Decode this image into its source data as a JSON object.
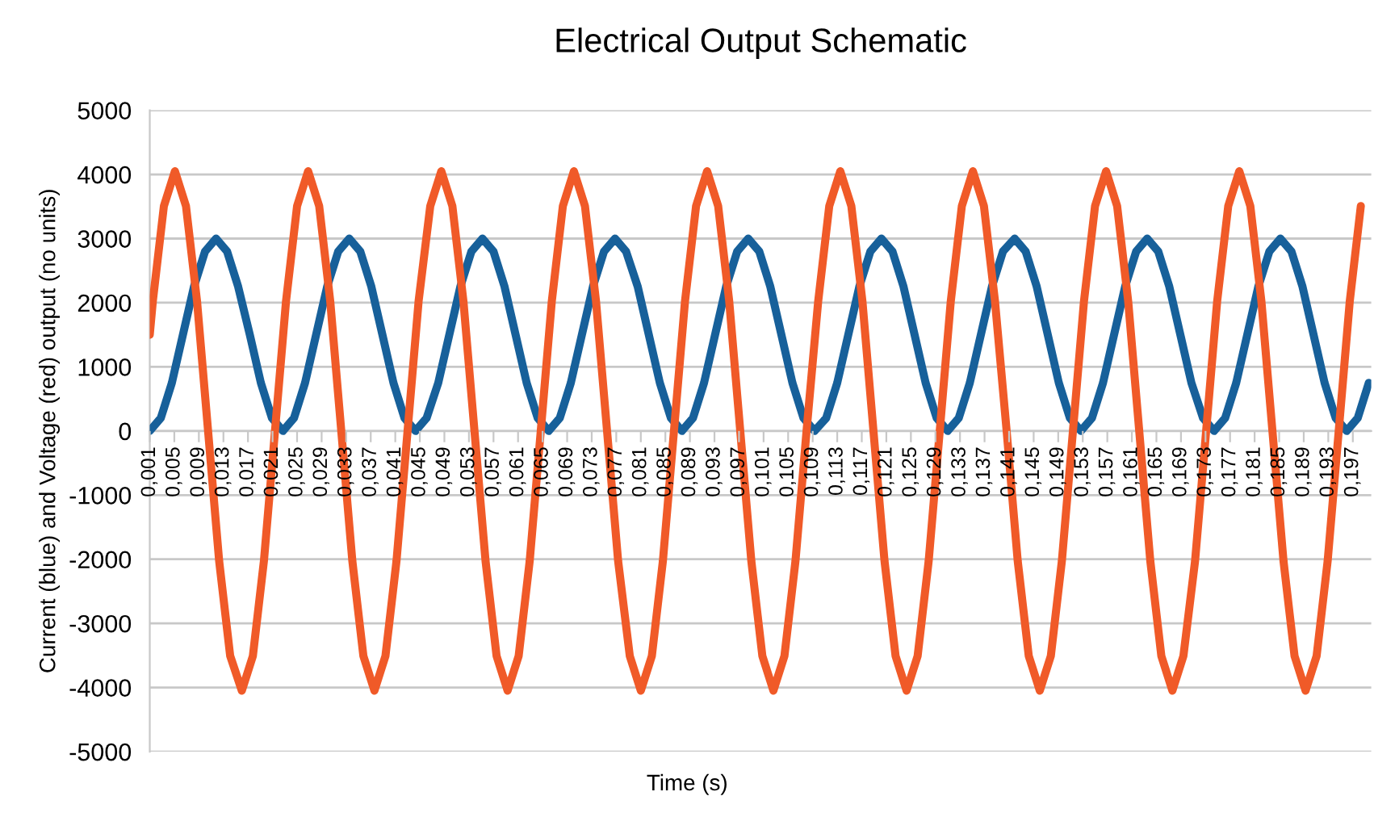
{
  "chart_data": {
    "type": "line",
    "title": "Electrical Output Schematic",
    "xlabel": "Time (s)",
    "ylabel": "Current (blue) and Voltage (red) output (no units)",
    "xlim": [
      0.001,
      0.2
    ],
    "ylim": [
      -5000,
      5000
    ],
    "yticks": [
      -5000,
      -4000,
      -3000,
      -2000,
      -1000,
      0,
      1000,
      2000,
      3000,
      4000,
      5000
    ],
    "xticks": [
      {
        "value": 0.001,
        "label": "0,001"
      },
      {
        "value": 0.005,
        "label": "0,005"
      },
      {
        "value": 0.009,
        "label": "0,009"
      },
      {
        "value": 0.013,
        "label": "0,013"
      },
      {
        "value": 0.017,
        "label": "0,017"
      },
      {
        "value": 0.021,
        "label": "0,021"
      },
      {
        "value": 0.025,
        "label": "0,025"
      },
      {
        "value": 0.029,
        "label": "0,029"
      },
      {
        "value": 0.033,
        "label": "0,033"
      },
      {
        "value": 0.037,
        "label": "0,037"
      },
      {
        "value": 0.041,
        "label": "0,041"
      },
      {
        "value": 0.045,
        "label": "0,045"
      },
      {
        "value": 0.049,
        "label": "0,049"
      },
      {
        "value": 0.053,
        "label": "0,053"
      },
      {
        "value": 0.057,
        "label": "0,057"
      },
      {
        "value": 0.061,
        "label": "0,061"
      },
      {
        "value": 0.065,
        "label": "0,065"
      },
      {
        "value": 0.069,
        "label": "0,069"
      },
      {
        "value": 0.073,
        "label": "0,073"
      },
      {
        "value": 0.077,
        "label": "0,077"
      },
      {
        "value": 0.081,
        "label": "0,081"
      },
      {
        "value": 0.085,
        "label": "0,085"
      },
      {
        "value": 0.089,
        "label": "0,089"
      },
      {
        "value": 0.093,
        "label": "0,093"
      },
      {
        "value": 0.097,
        "label": "0,097"
      },
      {
        "value": 0.101,
        "label": "0,101"
      },
      {
        "value": 0.105,
        "label": "0,105"
      },
      {
        "value": 0.109,
        "label": "0,109"
      },
      {
        "value": 0.113,
        "label": "0,113"
      },
      {
        "value": 0.117,
        "label": "0,117"
      },
      {
        "value": 0.121,
        "label": "0,121"
      },
      {
        "value": 0.125,
        "label": "0,125"
      },
      {
        "value": 0.129,
        "label": "0,129"
      },
      {
        "value": 0.133,
        "label": "0,133"
      },
      {
        "value": 0.137,
        "label": "0,137"
      },
      {
        "value": 0.141,
        "label": "0,141"
      },
      {
        "value": 0.145,
        "label": "0,145"
      },
      {
        "value": 0.149,
        "label": "0,149"
      },
      {
        "value": 0.153,
        "label": "0,153"
      },
      {
        "value": 0.157,
        "label": "0,157"
      },
      {
        "value": 0.161,
        "label": "0,161"
      },
      {
        "value": 0.165,
        "label": "0,165"
      },
      {
        "value": 0.169,
        "label": "0,169"
      },
      {
        "value": 0.173,
        "label": "0,173"
      },
      {
        "value": 0.177,
        "label": "0,177"
      },
      {
        "value": 0.181,
        "label": "0,181"
      },
      {
        "value": 0.185,
        "label": "0,185"
      },
      {
        "value": 0.189,
        "label": "0,189"
      },
      {
        "value": 0.193,
        "label": "0,193"
      },
      {
        "value": 0.197,
        "label": "0,197"
      }
    ],
    "grid": "y",
    "marker": "none",
    "line_style": "solid",
    "series": [
      {
        "color": "#17609a",
        "x": [
          0.001,
          0.0028,
          0.0046,
          0.0064,
          0.0082,
          0.01,
          0.0118,
          0.0136,
          0.0154,
          0.0173,
          0.0191,
          0.0209,
          0.0227,
          0.0245,
          0.0263,
          0.0281,
          0.0299,
          0.0317,
          0.0335,
          0.0353,
          0.0371,
          0.0389,
          0.0407,
          0.0425,
          0.0443,
          0.0461,
          0.048,
          0.0498,
          0.0516,
          0.0534,
          0.0552,
          0.057,
          0.0588,
          0.0606,
          0.0624,
          0.0642,
          0.066,
          0.0678,
          0.0696,
          0.0714,
          0.0732,
          0.075,
          0.0768,
          0.0786,
          0.0805,
          0.0823,
          0.0841,
          0.0859,
          0.0877,
          0.0895,
          0.0913,
          0.0931,
          0.0949,
          0.0967,
          0.0985,
          0.1003,
          0.1021,
          0.1039,
          0.1057,
          0.1075,
          0.1093,
          0.1112,
          0.113,
          0.1148,
          0.1166,
          0.1184,
          0.1202,
          0.122,
          0.1238,
          0.1256,
          0.1274,
          0.1292,
          0.131,
          0.1328,
          0.1346,
          0.1364,
          0.1382,
          0.14,
          0.1419,
          0.1437,
          0.1455,
          0.1473,
          0.1491,
          0.1509,
          0.1527,
          0.1545,
          0.1563,
          0.1581,
          0.1599,
          0.1617,
          0.1635,
          0.1653,
          0.1671,
          0.1689,
          0.1707,
          0.1726,
          0.1744,
          0.1762,
          0.178,
          0.1798,
          0.1816,
          0.1834,
          0.1852,
          0.187,
          0.1888,
          0.1906,
          0.1924,
          0.1942,
          0.196,
          0.1978,
          0.1996
        ],
        "values": [
          0,
          201,
          750,
          1500,
          2250,
          2799,
          3000,
          2799,
          2250,
          1500,
          750,
          201,
          0,
          201,
          750,
          1500,
          2250,
          2799,
          3000,
          2799,
          2250,
          1500,
          750,
          201,
          0,
          201,
          750,
          1500,
          2250,
          2799,
          3000,
          2799,
          2250,
          1500,
          750,
          201,
          0,
          201,
          750,
          1500,
          2250,
          2799,
          3000,
          2799,
          2250,
          1500,
          750,
          201,
          0,
          201,
          750,
          1500,
          2250,
          2799,
          3000,
          2799,
          2250,
          1500,
          750,
          201,
          0,
          201,
          750,
          1500,
          2250,
          2799,
          3000,
          2799,
          2250,
          1500,
          750,
          201,
          0,
          201,
          750,
          1500,
          2250,
          2799,
          3000,
          2799,
          2250,
          1500,
          750,
          201,
          0,
          201,
          750,
          1500,
          2250,
          2799,
          3000,
          2799,
          2250,
          1500,
          750,
          201,
          0,
          201,
          750,
          1500,
          2250,
          2799,
          3000,
          2799,
          2250,
          1500,
          750,
          201,
          0,
          201,
          750
        ]
      },
      {
        "color": "#f05a28",
        "x": [
          0.001,
          0.0015,
          0.0033,
          0.0051,
          0.0069,
          0.0087,
          0.0105,
          0.0123,
          0.0141,
          0.016,
          0.0178,
          0.0196,
          0.0214,
          0.0232,
          0.025,
          0.0268,
          0.0286,
          0.0304,
          0.0322,
          0.034,
          0.0358,
          0.0376,
          0.0394,
          0.0412,
          0.043,
          0.0448,
          0.0467,
          0.0485,
          0.0503,
          0.0521,
          0.0539,
          0.0557,
          0.0575,
          0.0593,
          0.0611,
          0.0629,
          0.0647,
          0.0665,
          0.0683,
          0.0701,
          0.0719,
          0.0737,
          0.0755,
          0.0773,
          0.0792,
          0.081,
          0.0828,
          0.0846,
          0.0864,
          0.0882,
          0.09,
          0.0918,
          0.0936,
          0.0954,
          0.0972,
          0.099,
          0.1008,
          0.1026,
          0.1044,
          0.1062,
          0.108,
          0.1099,
          0.1117,
          0.1135,
          0.1153,
          0.1171,
          0.1189,
          0.1207,
          0.1225,
          0.1243,
          0.1261,
          0.1279,
          0.1297,
          0.1315,
          0.1333,
          0.1351,
          0.1369,
          0.1387,
          0.1406,
          0.1424,
          0.1442,
          0.146,
          0.1478,
          0.1496,
          0.1514,
          0.1532,
          0.155,
          0.1568,
          0.1586,
          0.1604,
          0.1622,
          0.164,
          0.1658,
          0.1676,
          0.1694,
          0.1713,
          0.1731,
          0.1749,
          0.1767,
          0.1785,
          0.1803,
          0.1821,
          0.1839,
          0.1857,
          0.1875,
          0.1893,
          0.1911,
          0.1929,
          0.1947,
          0.1965,
          0.1983
        ],
        "values": [
          1500,
          2025,
          3507,
          4050,
          3507,
          2025,
          0,
          -2025,
          -3507,
          -4050,
          -3507,
          -2025,
          0,
          2025,
          3507,
          4050,
          3507,
          2025,
          0,
          -2025,
          -3507,
          -4050,
          -3507,
          -2025,
          0,
          2025,
          3507,
          4050,
          3507,
          2025,
          0,
          -2025,
          -3507,
          -4050,
          -3507,
          -2025,
          0,
          2025,
          3507,
          4050,
          3507,
          2025,
          0,
          -2025,
          -3507,
          -4050,
          -3507,
          -2025,
          0,
          2025,
          3507,
          4050,
          3507,
          2025,
          0,
          -2025,
          -3507,
          -4050,
          -3507,
          -2025,
          0,
          2025,
          3507,
          4050,
          3507,
          2025,
          0,
          -2025,
          -3507,
          -4050,
          -3507,
          -2025,
          0,
          2025,
          3507,
          4050,
          3507,
          2025,
          0,
          -2025,
          -3507,
          -4050,
          -3507,
          -2025,
          0,
          2025,
          3507,
          4050,
          3507,
          2025,
          0,
          -2025,
          -3507,
          -4050,
          -3507,
          -2025,
          0,
          2025,
          3507,
          4050,
          3507,
          2025,
          0,
          -2025,
          -3507,
          -4050,
          -3507,
          -2025,
          0,
          2025,
          3507
        ]
      }
    ]
  }
}
